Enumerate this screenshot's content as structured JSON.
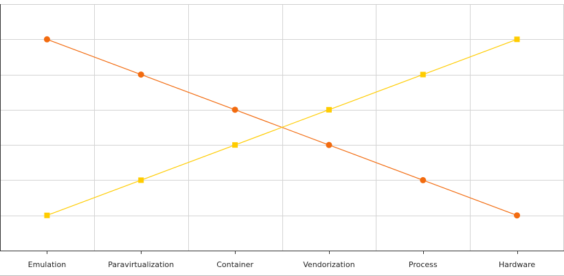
{
  "chart_data": {
    "type": "line",
    "categories": [
      "Emulation",
      "Paravirtualization",
      "Container",
      "Vendorization",
      "Process",
      "Hardware"
    ],
    "series": [
      {
        "values": [
          6,
          5,
          4,
          3,
          2,
          1
        ],
        "color": "#f26b0f",
        "marker": "circle"
      },
      {
        "values": [
          1,
          2,
          3,
          4,
          5,
          6
        ],
        "color": "#ffcc00",
        "marker": "square"
      }
    ],
    "ylim": [
      0,
      7
    ],
    "grid": true
  }
}
